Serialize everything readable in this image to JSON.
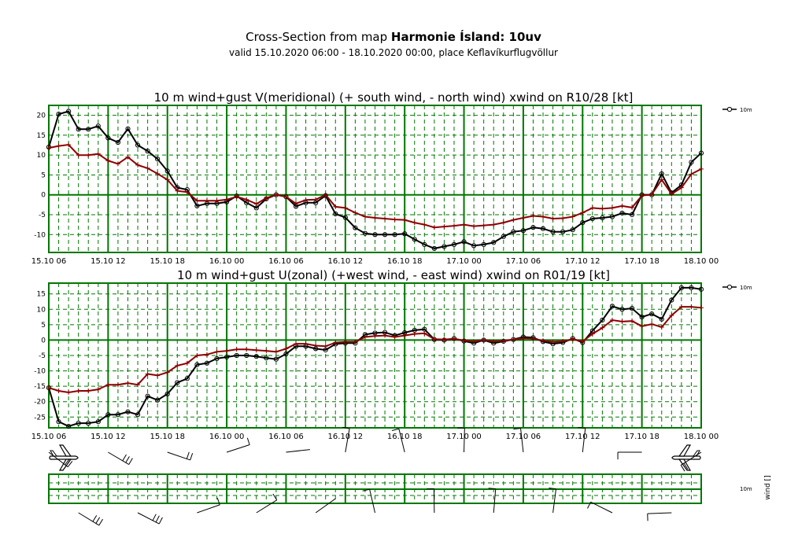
{
  "header": {
    "title_prefix": "Cross-Section from map ",
    "title_bold": "Harmonie Ísland: 10uv",
    "subtitle": "valid 15.10.2020 06:00 - 18.10.2020 00:00, place Keflavíkurflugvöllur"
  },
  "colors": {
    "grid": "#007700",
    "series_10m": "#000000",
    "series_gust": "#8b0000",
    "background": "#ffffff"
  },
  "x_ticks": [
    "15.10 06",
    "15.10 12",
    "15.10 18",
    "16.10 00",
    "16.10 06",
    "16.10 12",
    "16.10 18",
    "17.10 00",
    "17.10 06",
    "17.10 12",
    "17.10 18",
    "18.10 00"
  ],
  "chart_data": [
    {
      "type": "line",
      "title": "10 m wind+gust V(meridional) (+ south wind, - north wind) xwind on R10/28 [kt]",
      "legend": "10m",
      "x_start_hours": 0,
      "x_step_hours": 1,
      "xlim": [
        0,
        66
      ],
      "ylim": [
        -14.5,
        22.5
      ],
      "yticks": [
        20,
        15,
        10,
        5,
        0,
        -5,
        -10
      ],
      "series": [
        {
          "name": "10m",
          "values": [
            12,
            20.3,
            21,
            16.5,
            16.5,
            17.3,
            14.3,
            13.2,
            16.6,
            12.5,
            11,
            9,
            6,
            1.8,
            1.3,
            -2.8,
            -2.2,
            -2.2,
            -1.8,
            -0.3,
            -2,
            -3.3,
            -1,
            0,
            -0.5,
            -2.9,
            -2,
            -2,
            -0.2,
            -4.8,
            -5.7,
            -8.3,
            -9.7,
            -10,
            -10,
            -10,
            -9.8,
            -11.2,
            -12.5,
            -13.5,
            -13,
            -12.5,
            -11.8,
            -12.8,
            -12.5,
            -12,
            -10.5,
            -9.3,
            -9,
            -8.2,
            -8.5,
            -9.3,
            -9.3,
            -8.8,
            -7,
            -6,
            -5.8,
            -5.5,
            -4.6,
            -5,
            0,
            0,
            5.3,
            0.5,
            2.5,
            8.2,
            10.5
          ]
        },
        {
          "name": "gust",
          "values": [
            11.8,
            12.3,
            12.6,
            10,
            10,
            10.3,
            8.6,
            7.8,
            9.5,
            7.5,
            6.7,
            5.3,
            3.8,
            1,
            0.7,
            -1.5,
            -1.5,
            -1.5,
            -1.2,
            -0.5,
            -1.2,
            -2.3,
            -0.8,
            0,
            -0.5,
            -2.2,
            -1.3,
            -1.2,
            0,
            -3,
            -3.3,
            -4.5,
            -5.5,
            -5.8,
            -6,
            -6.2,
            -6.3,
            -7,
            -7.5,
            -8.2,
            -8,
            -7.8,
            -7.5,
            -7.9,
            -7.7,
            -7.5,
            -7,
            -6.3,
            -5.8,
            -5.3,
            -5.5,
            -6,
            -5.9,
            -5.5,
            -4.5,
            -3.3,
            -3.5,
            -3.3,
            -2.8,
            -3.2,
            -0.2,
            0.1,
            3.8,
            0.2,
            1.8,
            5.2,
            6.5
          ]
        }
      ]
    },
    {
      "type": "line",
      "title": "10 m wind+gust U(zonal) (+west wind, - east wind) xwind on R01/19 [kt]",
      "legend": "10m",
      "x_start_hours": 0,
      "x_step_hours": 1,
      "xlim": [
        0,
        66
      ],
      "ylim": [
        -28.5,
        18.5
      ],
      "yticks": [
        15,
        10,
        5,
        0,
        -5,
        -10,
        -15,
        -20,
        -25
      ],
      "series": [
        {
          "name": "10m",
          "values": [
            -15.5,
            -26.5,
            -28,
            -27,
            -27,
            -26.5,
            -24.2,
            -24.2,
            -23.3,
            -24.2,
            -18.2,
            -19.5,
            -17.5,
            -13.8,
            -12.5,
            -8,
            -7.5,
            -6,
            -5.5,
            -5,
            -5,
            -5.3,
            -5.8,
            -6.2,
            -4.5,
            -2,
            -2,
            -2.8,
            -3.2,
            -1.3,
            -1,
            -1,
            1.8,
            2.3,
            2.5,
            1.5,
            2.4,
            3.2,
            3.5,
            0.2,
            0,
            0.5,
            -0.3,
            -1,
            0,
            -1,
            -0.4,
            0.2,
            1,
            0.8,
            -0.5,
            -1.2,
            -0.8,
            0.5,
            -0.8,
            3,
            6.5,
            11,
            10,
            10.3,
            7.5,
            8.5,
            6.8,
            13,
            17,
            17,
            16.5
          ]
        },
        {
          "name": "gust",
          "values": [
            -15.5,
            -16.5,
            -17,
            -16.5,
            -16.5,
            -16,
            -14.5,
            -14.5,
            -14,
            -14.5,
            -11,
            -11.5,
            -10.5,
            -8.3,
            -7.5,
            -5,
            -4.7,
            -3.8,
            -3.5,
            -3,
            -3,
            -3.3,
            -3.5,
            -3.8,
            -2.8,
            -1.2,
            -1.2,
            -1.8,
            -2,
            -0.8,
            -0.6,
            -0.6,
            1,
            1.3,
            1.5,
            1,
            1.5,
            2,
            2.2,
            0.3,
            0.2,
            0.4,
            -0.1,
            -0.5,
            0.1,
            -0.5,
            -0.2,
            0.2,
            0.6,
            0.5,
            -0.2,
            -0.6,
            -0.4,
            0.3,
            -0.4,
            2,
            4,
            6.5,
            6,
            6.2,
            4.5,
            5.2,
            4.2,
            8,
            10.8,
            10.8,
            10.5
          ]
        }
      ]
    },
    {
      "type": "wind-barbs",
      "legend_label": "10m",
      "ylabel": "wind []",
      "barbs": [
        {
          "hour": 0,
          "icon": "airplane-left"
        },
        {
          "hour": 66,
          "icon": "airplane-right"
        }
      ]
    }
  ]
}
